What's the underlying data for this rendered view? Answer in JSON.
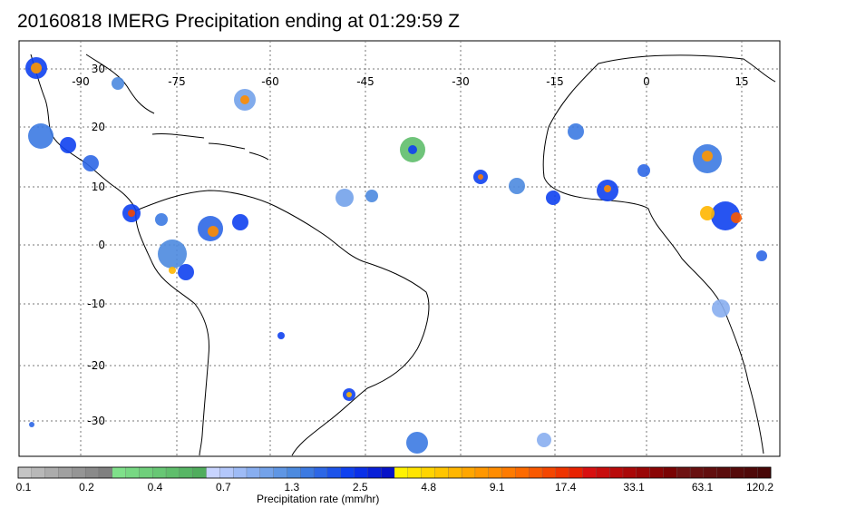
{
  "title": "20160818 IMERG Precipitation ending at 01:29:59 Z",
  "lon_labels": [
    "-90",
    "-75",
    "-60",
    "-45",
    "-30",
    "-15",
    "0",
    "15"
  ],
  "lat_labels": [
    "30",
    "20",
    "10",
    "0",
    "-10",
    "-20",
    "-30"
  ],
  "colorbar": {
    "label": "Precipitation rate (mm/hr)",
    "tick_labels": [
      "0.1",
      "0.2",
      "0.4",
      "0.7",
      "1.3",
      "2.5",
      "4.8",
      "9.1",
      "17.4",
      "33.1",
      "63.1",
      "120.2"
    ],
    "colors": [
      "#c4c4c4",
      "#b8b8b8",
      "#acacac",
      "#a0a0a0",
      "#959595",
      "#8a8a8a",
      "#808080",
      "#7fe08a",
      "#77d883",
      "#6fcf7b",
      "#67c774",
      "#5fbe6c",
      "#57b665",
      "#50ad5d",
      "#c8d4ff",
      "#b3c7fb",
      "#9ebbf6",
      "#88aef0",
      "#73a2ea",
      "#5f96e4",
      "#4c8adf",
      "#3c7ae2",
      "#2d67e6",
      "#1d54ea",
      "#0f41ef",
      "#0a30e8",
      "#0820d8",
      "#0612c8",
      "#fff200",
      "#ffe400",
      "#ffd400",
      "#ffc500",
      "#ffb600",
      "#ffa600",
      "#ff9700",
      "#ff8c00",
      "#fe7b00",
      "#fc6a00",
      "#f95900",
      "#f44600",
      "#ee3400",
      "#e82200",
      "#d81010",
      "#c80d0d",
      "#b90a0a",
      "#aa0808",
      "#9a0606",
      "#8a0404",
      "#7a0303",
      "#6e1212",
      "#681010",
      "#620e0e",
      "#5b0c0c",
      "#550a0a",
      "#4f0808",
      "#480606"
    ]
  }
}
